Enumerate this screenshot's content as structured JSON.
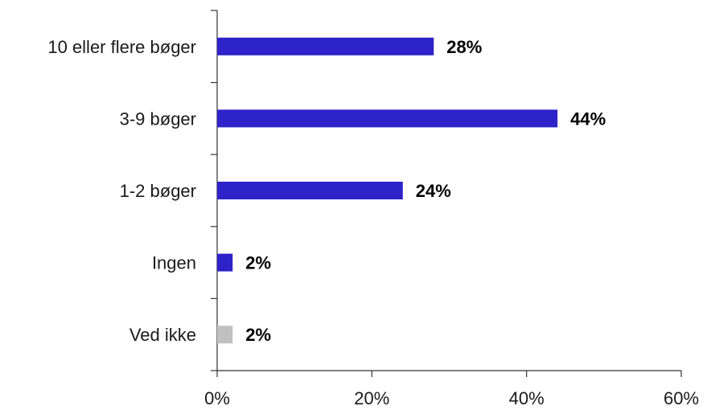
{
  "chart_data": {
    "type": "bar",
    "orientation": "horizontal",
    "title": "",
    "xlabel": "",
    "ylabel": "",
    "categories": [
      "10 eller flere bøger",
      "3-9 bøger",
      "1-2 bøger",
      "Ingen",
      "Ved ikke"
    ],
    "values": [
      28,
      44,
      24,
      2,
      2
    ],
    "value_labels": [
      "28%",
      "44%",
      "24%",
      "2%",
      "2%"
    ],
    "bar_colors": [
      "#2e22c9",
      "#2e22c9",
      "#2e22c9",
      "#2e22c9",
      "#c0c0c0"
    ],
    "xlim": [
      0,
      60
    ],
    "xticks": [
      0,
      20,
      40,
      60
    ],
    "xtick_labels": [
      "0%",
      "20%",
      "40%",
      "60%"
    ],
    "grid": false,
    "legend": "none"
  }
}
